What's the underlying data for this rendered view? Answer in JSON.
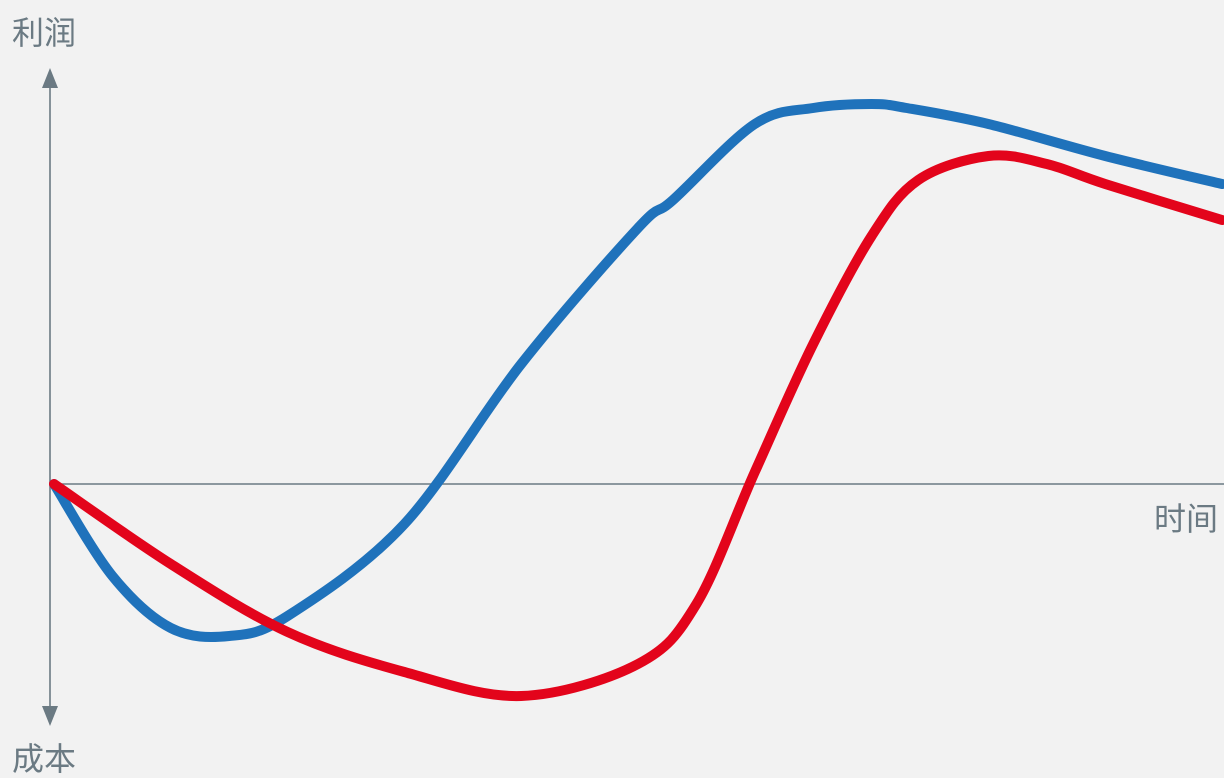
{
  "chart_data": {
    "type": "line",
    "y_axis_top_label": "利润",
    "y_axis_bottom_label": "成本",
    "x_axis_label": "时间",
    "grid": false,
    "legend": "none",
    "series": [
      {
        "color": "#1f72bb",
        "x": [
          0,
          0.05,
          0.1,
          0.15,
          0.2,
          0.3,
          0.4,
          0.5,
          0.53,
          0.6,
          0.65,
          0.7,
          0.73,
          0.8,
          0.9,
          1.0
        ],
        "y": [
          0,
          -0.23,
          -0.36,
          -0.38,
          -0.33,
          -0.1,
          0.3,
          0.64,
          0.71,
          0.9,
          0.94,
          0.95,
          0.94,
          0.9,
          0.82,
          0.75
        ]
      },
      {
        "color": "#e3041b",
        "x": [
          0,
          0.1,
          0.2,
          0.3,
          0.4,
          0.5,
          0.55,
          0.6,
          0.65,
          0.7,
          0.74,
          0.8,
          0.85,
          0.9,
          1.0
        ],
        "y": [
          0,
          -0.2,
          -0.37,
          -0.47,
          -0.53,
          -0.45,
          -0.3,
          0.03,
          0.35,
          0.62,
          0.76,
          0.82,
          0.8,
          0.75,
          0.66
        ]
      }
    ],
    "xlim": [
      0,
      1
    ],
    "ylim": [
      -0.6,
      1.0
    ]
  }
}
